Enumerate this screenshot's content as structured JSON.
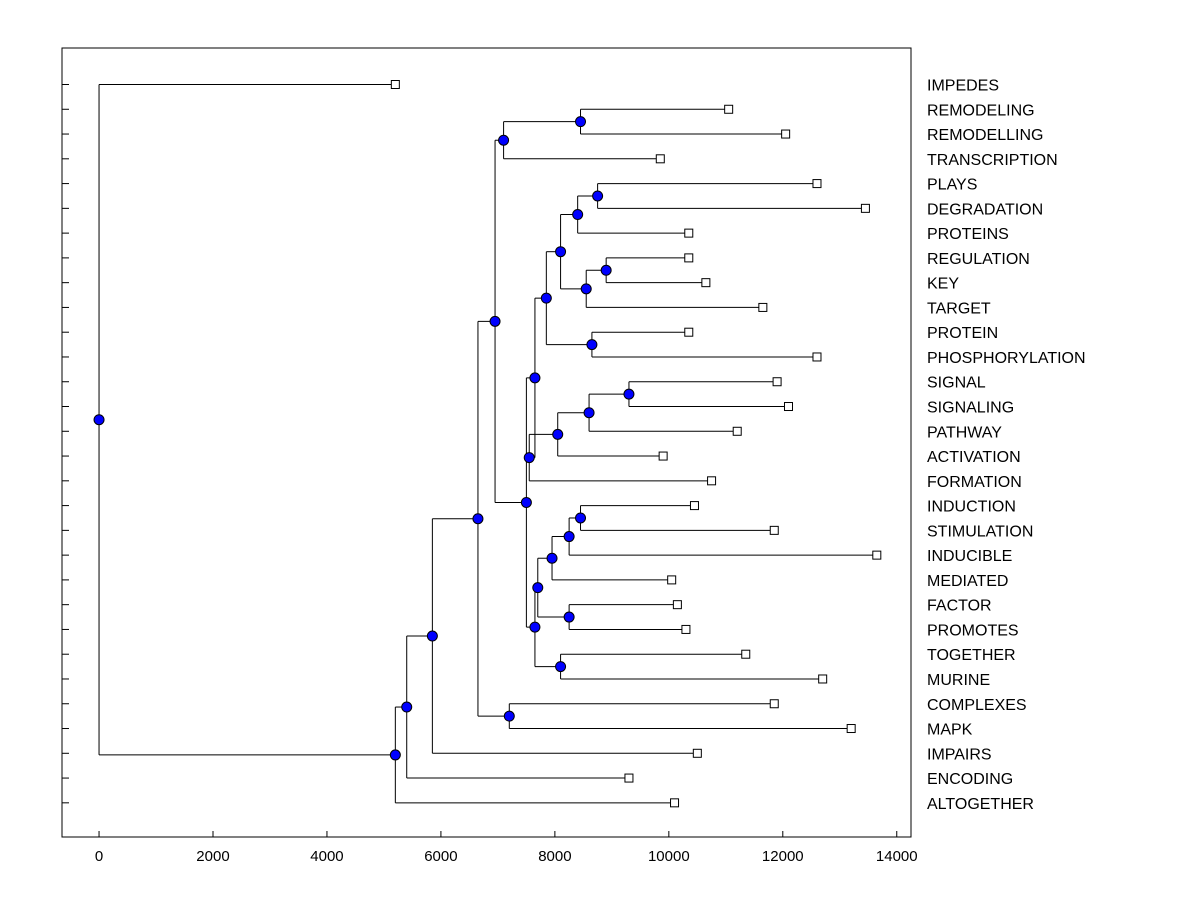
{
  "chart_data": {
    "type": "dendrogram",
    "title": "",
    "xlabel": "",
    "ylabel": "",
    "xlim": [
      -650,
      14250
    ],
    "xticks": [
      0,
      2000,
      4000,
      6000,
      8000,
      10000,
      12000,
      14000
    ],
    "xtick_labels": [
      "0",
      "2000",
      "4000",
      "6000",
      "8000",
      "10000",
      "12000",
      "14000"
    ],
    "grid": false,
    "colors": {
      "internal_node": "#0000ff",
      "leaf_node": "#ffffff",
      "line": "#000000"
    },
    "leaves": [
      {
        "label": "IMPEDES",
        "x": 5200
      },
      {
        "label": "REMODELING",
        "x": 11050
      },
      {
        "label": "REMODELLING",
        "x": 12050
      },
      {
        "label": "TRANSCRIPTION",
        "x": 9850
      },
      {
        "label": "PLAYS",
        "x": 12600
      },
      {
        "label": "DEGRADATION",
        "x": 13450
      },
      {
        "label": "PROTEINS",
        "x": 10350
      },
      {
        "label": "REGULATION",
        "x": 10350
      },
      {
        "label": "KEY",
        "x": 10650
      },
      {
        "label": "TARGET",
        "x": 11650
      },
      {
        "label": "PROTEIN",
        "x": 10350
      },
      {
        "label": "PHOSPHORYLATION",
        "x": 12600
      },
      {
        "label": "SIGNAL",
        "x": 11900
      },
      {
        "label": "SIGNALING",
        "x": 12100
      },
      {
        "label": "PATHWAY",
        "x": 11200
      },
      {
        "label": "ACTIVATION",
        "x": 9900
      },
      {
        "label": "FORMATION",
        "x": 10750
      },
      {
        "label": "INDUCTION",
        "x": 10450
      },
      {
        "label": "STIMULATION",
        "x": 11850
      },
      {
        "label": "INDUCIBLE",
        "x": 13650
      },
      {
        "label": "MEDIATED",
        "x": 10050
      },
      {
        "label": "FACTOR",
        "x": 10150
      },
      {
        "label": "PROMOTES",
        "x": 10300
      },
      {
        "label": "TOGETHER",
        "x": 11350
      },
      {
        "label": "MURINE",
        "x": 12700
      },
      {
        "label": "COMPLEXES",
        "x": 11850
      },
      {
        "label": "MAPK",
        "x": 13200
      },
      {
        "label": "IMPAIRS",
        "x": 10500
      },
      {
        "label": "ENCODING",
        "x": 9300
      },
      {
        "label": "ALTOGETHER",
        "x": 10100
      }
    ],
    "merges": [
      {
        "id": "n1",
        "x": 8450,
        "children": [
          "L1",
          "L2"
        ]
      },
      {
        "id": "n2",
        "x": 7100,
        "children": [
          "n1",
          "L3"
        ]
      },
      {
        "id": "n3",
        "x": 8750,
        "children": [
          "L4",
          "L5"
        ]
      },
      {
        "id": "n4",
        "x": 8400,
        "children": [
          "n3",
          "L6"
        ]
      },
      {
        "id": "n5",
        "x": 8900,
        "children": [
          "L7",
          "L8"
        ]
      },
      {
        "id": "n6",
        "x": 8550,
        "children": [
          "n5",
          "L9"
        ]
      },
      {
        "id": "n7",
        "x": 8100,
        "children": [
          "n4",
          "n6"
        ]
      },
      {
        "id": "n8",
        "x": 8650,
        "children": [
          "L10",
          "L11"
        ]
      },
      {
        "id": "n9",
        "x": 7850,
        "children": [
          "n7",
          "n8"
        ]
      },
      {
        "id": "n10",
        "x": 9300,
        "children": [
          "L12",
          "L13"
        ]
      },
      {
        "id": "n11",
        "x": 8600,
        "children": [
          "n10",
          "L14"
        ]
      },
      {
        "id": "n12",
        "x": 8050,
        "children": [
          "n11",
          "L15"
        ]
      },
      {
        "id": "n13",
        "x": 7550,
        "children": [
          "n12",
          "L16"
        ]
      },
      {
        "id": "n14",
        "x": 7650,
        "children": [
          "n9",
          "n13"
        ]
      },
      {
        "id": "n15",
        "x": 8450,
        "children": [
          "L17",
          "L18"
        ]
      },
      {
        "id": "n16",
        "x": 8250,
        "children": [
          "n15",
          "L19"
        ]
      },
      {
        "id": "n17",
        "x": 7950,
        "children": [
          "n16",
          "L20"
        ]
      },
      {
        "id": "n18",
        "x": 8250,
        "children": [
          "L21",
          "L22"
        ]
      },
      {
        "id": "n19",
        "x": 7700,
        "children": [
          "n17",
          "n18"
        ]
      },
      {
        "id": "n20",
        "x": 8100,
        "children": [
          "L23",
          "L24"
        ]
      },
      {
        "id": "n21",
        "x": 7650,
        "children": [
          "n19",
          "n20"
        ]
      },
      {
        "id": "n22",
        "x": 7500,
        "children": [
          "n14",
          "n21"
        ]
      },
      {
        "id": "n23",
        "x": 6950,
        "children": [
          "n2",
          "n22"
        ]
      },
      {
        "id": "n24",
        "x": 7200,
        "children": [
          "L25",
          "L26"
        ]
      },
      {
        "id": "n25",
        "x": 6650,
        "children": [
          "n23",
          "n24"
        ]
      },
      {
        "id": "n26",
        "x": 5850,
        "children": [
          "n25",
          "L27"
        ]
      },
      {
        "id": "n27",
        "x": 5400,
        "children": [
          "n26",
          "L28"
        ]
      },
      {
        "id": "n28",
        "x": 5200,
        "children": [
          "n27",
          "L29"
        ]
      },
      {
        "id": "n29",
        "x": 0,
        "children": [
          "L0",
          "n28"
        ]
      }
    ]
  }
}
